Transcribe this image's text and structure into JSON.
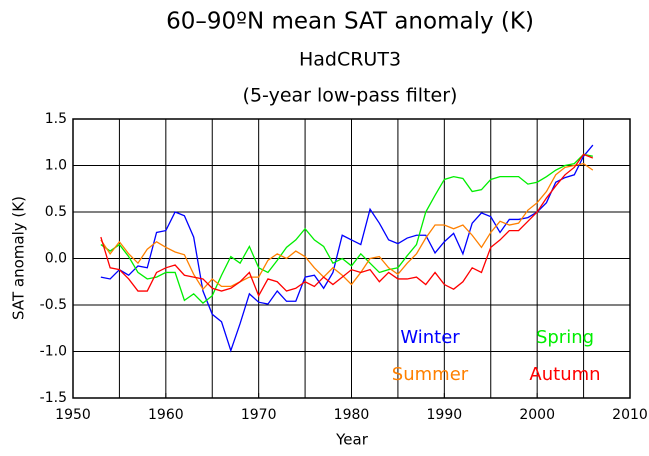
{
  "chart_data": {
    "type": "line",
    "title": "60–90ºN mean SAT anomaly (K)",
    "subtitle": "HadCRUT3",
    "subtitle2": "(5-year low-pass filter)",
    "x_label": "Year",
    "y_label": "SAT anomaly (K)",
    "x": [
      1953,
      1954,
      1955,
      1956,
      1957,
      1958,
      1959,
      1960,
      1961,
      1962,
      1963,
      1964,
      1965,
      1966,
      1967,
      1968,
      1969,
      1970,
      1971,
      1972,
      1973,
      1974,
      1975,
      1976,
      1977,
      1978,
      1979,
      1980,
      1981,
      1982,
      1983,
      1984,
      1985,
      1986,
      1987,
      1988,
      1989,
      1990,
      1991,
      1992,
      1993,
      1994,
      1995,
      1996,
      1997,
      1998,
      1999,
      2000,
      2001,
      2002,
      2003,
      2004,
      2005,
      2006
    ],
    "series": [
      {
        "name": "Winter",
        "color": "#0000ff",
        "values": [
          -0.2,
          -0.22,
          -0.12,
          -0.18,
          -0.08,
          -0.1,
          0.28,
          0.3,
          0.5,
          0.46,
          0.23,
          -0.35,
          -0.6,
          -0.68,
          -0.99,
          -0.7,
          -0.38,
          -0.47,
          -0.49,
          -0.35,
          -0.46,
          -0.46,
          -0.2,
          -0.18,
          -0.32,
          -0.15,
          0.25,
          0.2,
          0.15,
          0.53,
          0.38,
          0.2,
          0.16,
          0.22,
          0.25,
          0.25,
          0.06,
          0.18,
          0.27,
          0.05,
          0.38,
          0.49,
          0.45,
          0.28,
          0.42,
          0.42,
          0.44,
          0.5,
          0.6,
          0.82,
          0.87,
          0.9,
          1.1,
          1.22
        ]
      },
      {
        "name": "Spring",
        "color": "#00ee00",
        "values": [
          0.15,
          0.08,
          0.15,
          0.02,
          -0.15,
          -0.22,
          -0.2,
          -0.15,
          -0.15,
          -0.45,
          -0.38,
          -0.48,
          -0.4,
          -0.18,
          0.02,
          -0.05,
          0.13,
          -0.1,
          -0.15,
          -0.02,
          0.12,
          0.2,
          0.32,
          0.2,
          0.13,
          -0.05,
          0.0,
          -0.08,
          0.05,
          -0.05,
          -0.15,
          -0.12,
          -0.1,
          0.03,
          0.15,
          0.5,
          0.68,
          0.85,
          0.88,
          0.86,
          0.72,
          0.74,
          0.85,
          0.88,
          0.88,
          0.88,
          0.8,
          0.82,
          0.88,
          0.95,
          1.0,
          1.02,
          1.12,
          1.1
        ]
      },
      {
        "name": "Summer",
        "color": "#ff8000",
        "values": [
          0.2,
          0.05,
          0.18,
          0.05,
          -0.05,
          0.1,
          0.18,
          0.12,
          0.07,
          0.04,
          -0.17,
          -0.33,
          -0.22,
          -0.3,
          -0.3,
          -0.25,
          -0.2,
          -0.2,
          -0.02,
          0.05,
          0.0,
          0.08,
          0.02,
          -0.1,
          -0.2,
          -0.1,
          -0.18,
          -0.28,
          -0.15,
          0.0,
          0.02,
          -0.1,
          -0.17,
          -0.05,
          0.05,
          0.22,
          0.36,
          0.36,
          0.32,
          0.36,
          0.25,
          0.12,
          0.28,
          0.4,
          0.36,
          0.38,
          0.52,
          0.6,
          0.72,
          0.9,
          0.98,
          1.0,
          1.02,
          0.95
        ]
      },
      {
        "name": "Autumn",
        "color": "#ff0000",
        "values": [
          0.23,
          -0.1,
          -0.12,
          -0.22,
          -0.35,
          -0.35,
          -0.15,
          -0.1,
          -0.07,
          -0.18,
          -0.2,
          -0.22,
          -0.32,
          -0.35,
          -0.32,
          -0.25,
          -0.15,
          -0.4,
          -0.22,
          -0.25,
          -0.35,
          -0.32,
          -0.25,
          -0.3,
          -0.2,
          -0.28,
          -0.2,
          -0.12,
          -0.15,
          -0.12,
          -0.25,
          -0.15,
          -0.22,
          -0.22,
          -0.2,
          -0.28,
          -0.15,
          -0.28,
          -0.33,
          -0.25,
          -0.1,
          -0.15,
          0.12,
          0.2,
          0.3,
          0.3,
          0.4,
          0.5,
          0.65,
          0.78,
          0.9,
          0.98,
          1.12,
          1.08
        ]
      }
    ],
    "xlim": [
      1950,
      2010
    ],
    "xticks": [
      1950,
      1960,
      1970,
      1980,
      1990,
      2000,
      2010
    ],
    "xgrid": [
      1955,
      1960,
      1965,
      1970,
      1975,
      1980,
      1985,
      1990,
      1995,
      2000,
      2005
    ],
    "ylim": [
      -1.5,
      1.5
    ],
    "yticks": [
      -1.5,
      {
        "value": -1,
        "label": "-1.0"
      },
      -0.5,
      {
        "value": 0,
        "label": "0.0"
      },
      0.5,
      {
        "value": 1,
        "label": "1.0"
      },
      1.5
    ],
    "grid": true,
    "legend": "lower right"
  }
}
